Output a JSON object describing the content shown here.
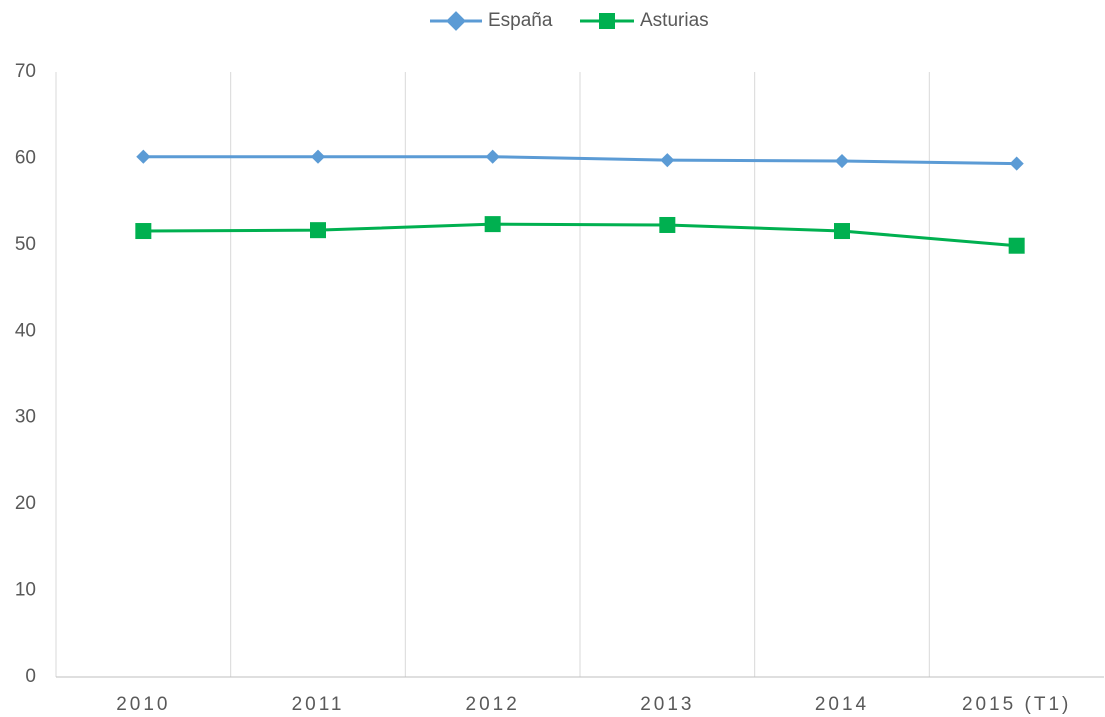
{
  "chart_data": {
    "type": "line",
    "categories": [
      "2010",
      "2011",
      "2012",
      "2013",
      "2014",
      "2015 (T1)"
    ],
    "series": [
      {
        "name": "España",
        "color": "#5b9bd5",
        "marker": "diamond",
        "values": [
          60.2,
          60.2,
          60.2,
          59.8,
          59.7,
          59.4
        ]
      },
      {
        "name": "Asturias",
        "color": "#00b050",
        "marker": "square",
        "values": [
          51.6,
          51.7,
          52.4,
          52.3,
          51.6,
          49.9
        ]
      }
    ],
    "ylim": [
      0,
      70
    ],
    "yticks": [
      0,
      10,
      20,
      30,
      40,
      50,
      60,
      70
    ],
    "legend": "top"
  }
}
